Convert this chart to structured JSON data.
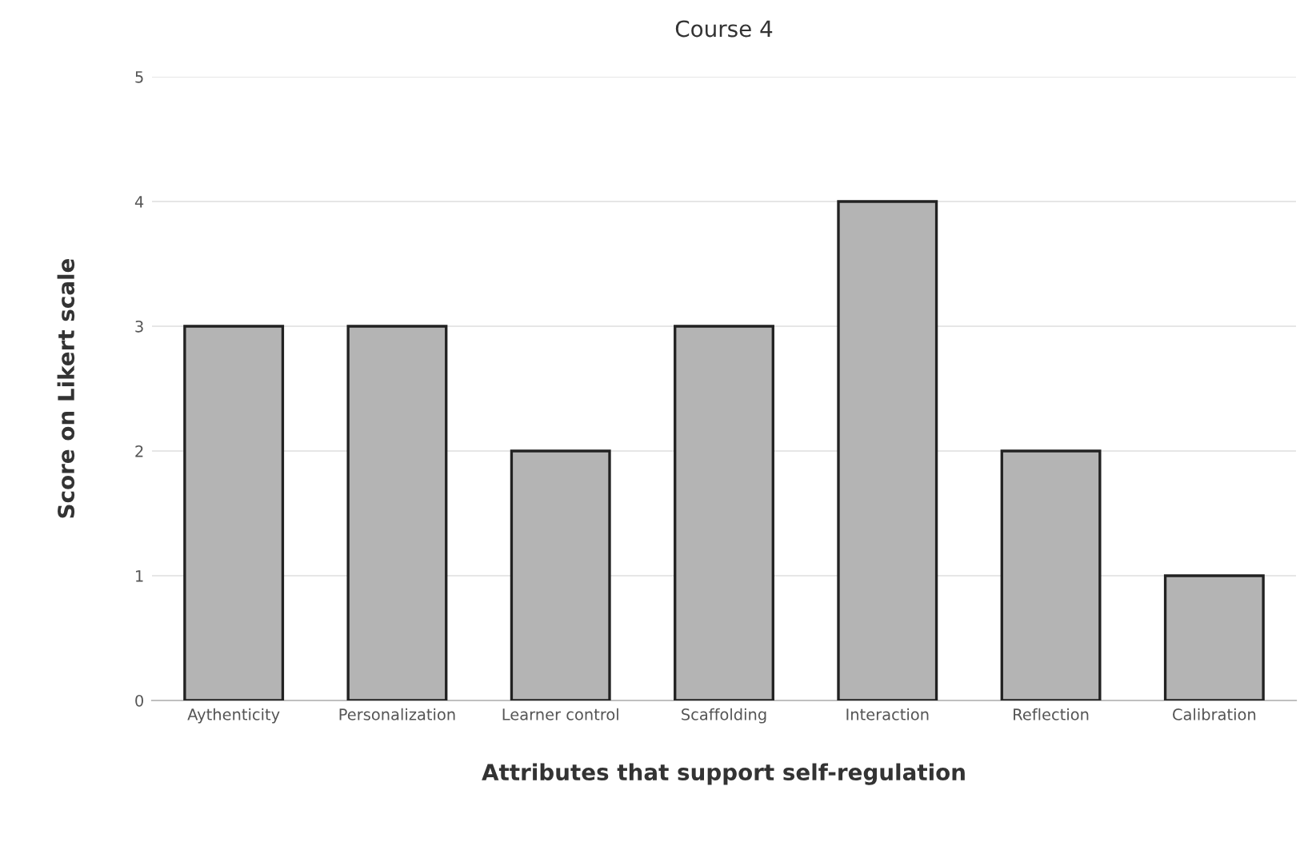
{
  "chart_data": {
    "type": "bar",
    "title": "Course 4",
    "xlabel": "Attributes that support self-regulation",
    "ylabel": "Score on Likert scale",
    "categories": [
      "Aythenticity",
      "Personalization",
      "Learner control",
      "Scaffolding",
      "Interaction",
      "Reflection",
      "Calibration"
    ],
    "values": [
      3,
      3,
      2,
      3,
      4,
      2,
      1
    ],
    "color": "#b4b4b4",
    "ylim": [
      0,
      5
    ],
    "yticks": [
      0,
      1,
      2,
      3,
      4,
      5
    ],
    "grid": "y"
  }
}
